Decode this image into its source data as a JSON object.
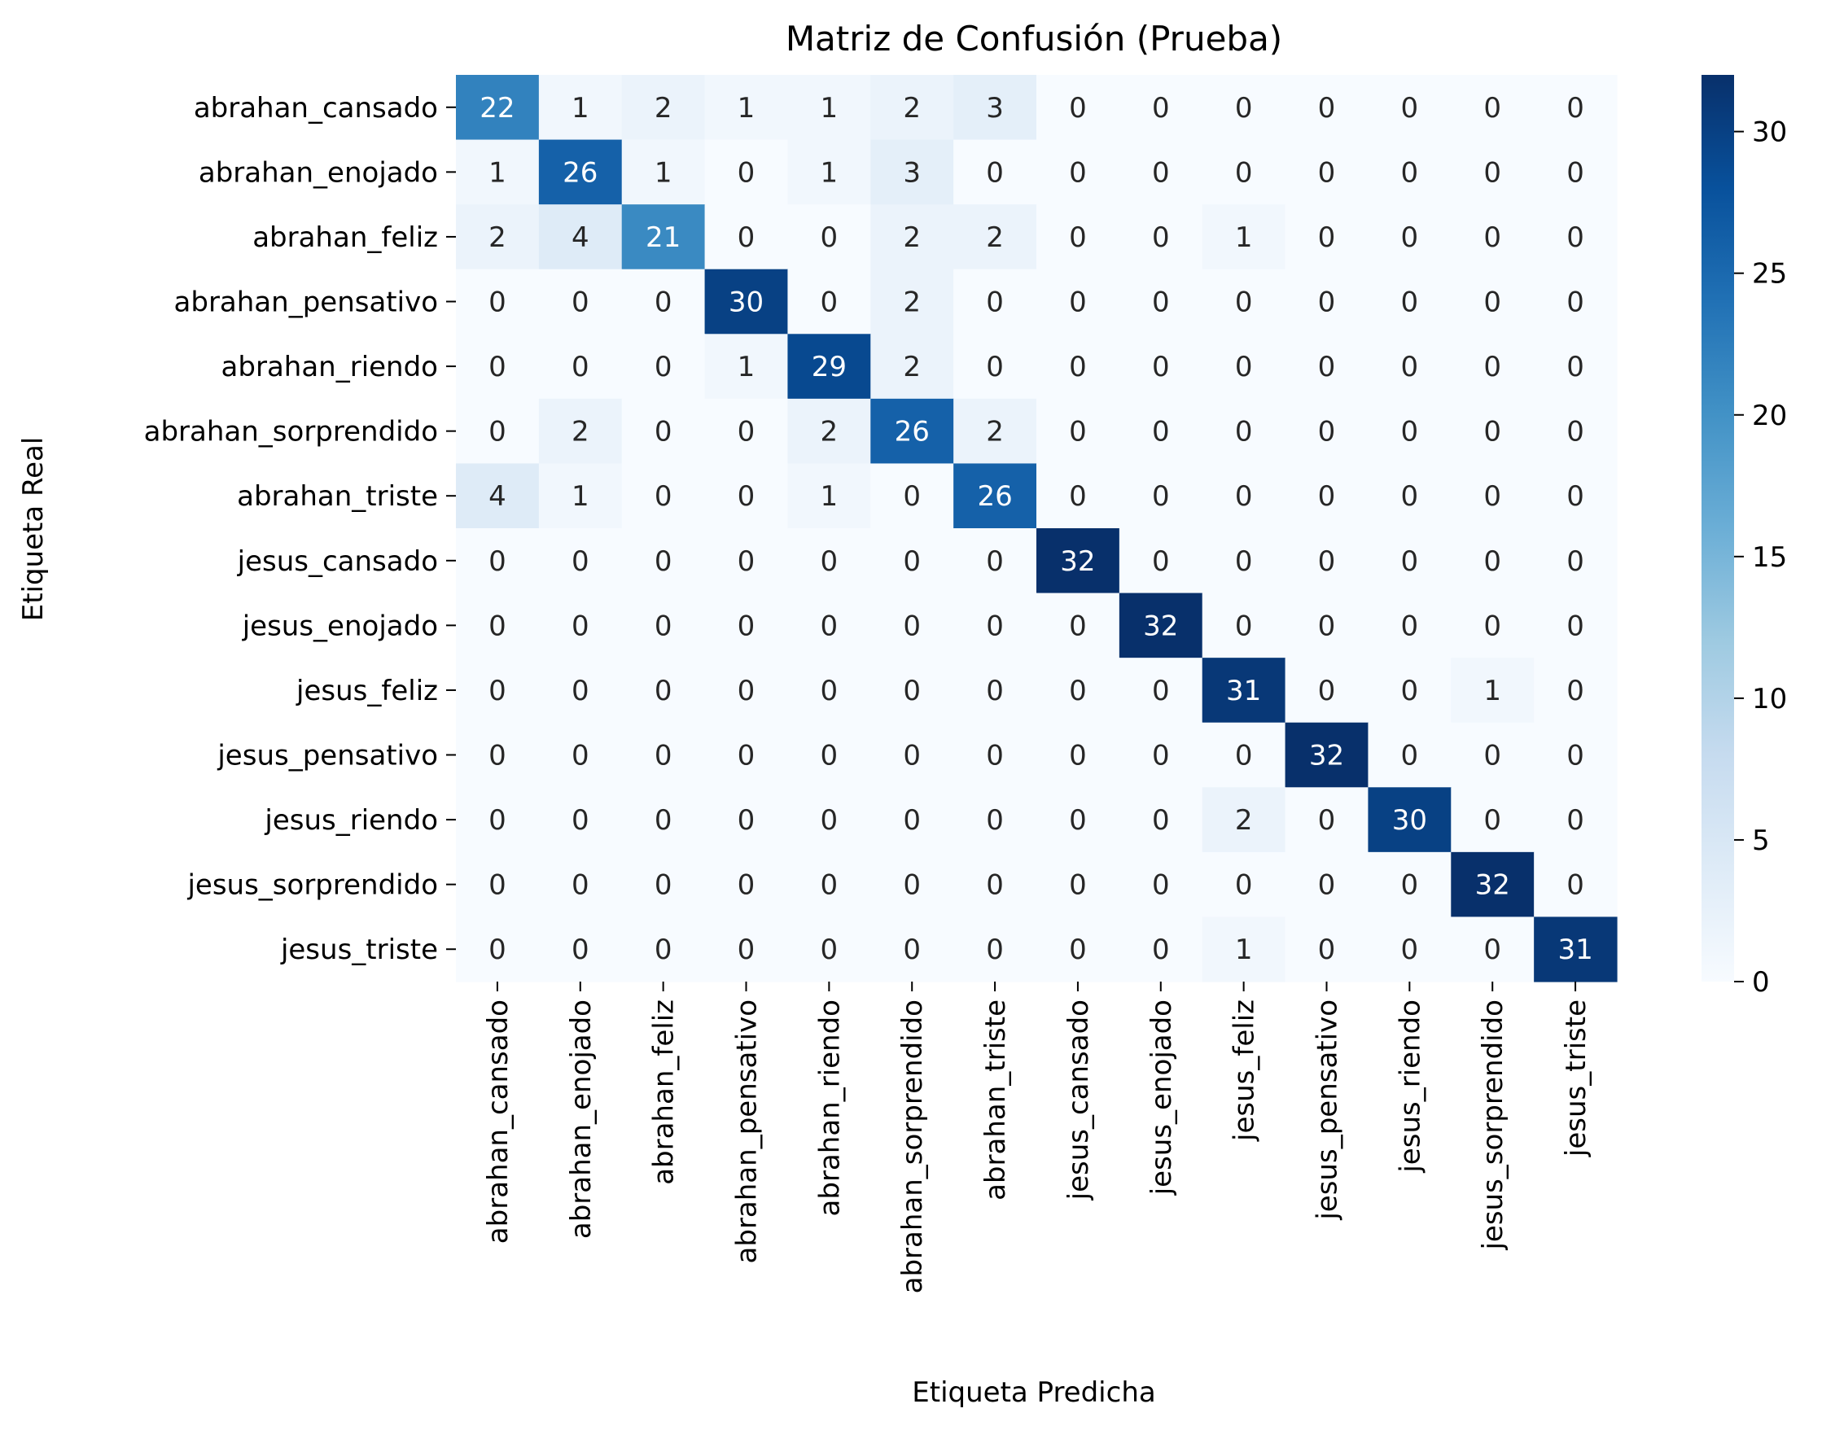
{
  "chart_data": {
    "type": "heatmap",
    "title": "Matriz de Confusión (Prueba)",
    "xlabel": "Etiqueta Predicha",
    "ylabel": "Etiqueta Real",
    "rows": [
      "abrahan_cansado",
      "abrahan_enojado",
      "abrahan_feliz",
      "abrahan_pensativo",
      "abrahan_riendo",
      "abrahan_sorprendido",
      "abrahan_triste",
      "jesus_cansado",
      "jesus_enojado",
      "jesus_feliz",
      "jesus_pensativo",
      "jesus_riendo",
      "jesus_sorprendido",
      "jesus_triste"
    ],
    "columns": [
      "abrahan_cansado",
      "abrahan_enojado",
      "abrahan_feliz",
      "abrahan_pensativo",
      "abrahan_riendo",
      "abrahan_sorprendido",
      "abrahan_triste",
      "jesus_cansado",
      "jesus_enojado",
      "jesus_feliz",
      "jesus_pensativo",
      "jesus_riendo",
      "jesus_sorprendido",
      "jesus_triste"
    ],
    "values": [
      [
        22,
        1,
        2,
        1,
        1,
        2,
        3,
        0,
        0,
        0,
        0,
        0,
        0,
        0
      ],
      [
        1,
        26,
        1,
        0,
        1,
        3,
        0,
        0,
        0,
        0,
        0,
        0,
        0,
        0
      ],
      [
        2,
        4,
        21,
        0,
        0,
        2,
        2,
        0,
        0,
        1,
        0,
        0,
        0,
        0
      ],
      [
        0,
        0,
        0,
        30,
        0,
        2,
        0,
        0,
        0,
        0,
        0,
        0,
        0,
        0
      ],
      [
        0,
        0,
        0,
        1,
        29,
        2,
        0,
        0,
        0,
        0,
        0,
        0,
        0,
        0
      ],
      [
        0,
        2,
        0,
        0,
        2,
        26,
        2,
        0,
        0,
        0,
        0,
        0,
        0,
        0
      ],
      [
        4,
        1,
        0,
        0,
        1,
        0,
        26,
        0,
        0,
        0,
        0,
        0,
        0,
        0
      ],
      [
        0,
        0,
        0,
        0,
        0,
        0,
        0,
        32,
        0,
        0,
        0,
        0,
        0,
        0
      ],
      [
        0,
        0,
        0,
        0,
        0,
        0,
        0,
        0,
        32,
        0,
        0,
        0,
        0,
        0
      ],
      [
        0,
        0,
        0,
        0,
        0,
        0,
        0,
        0,
        0,
        31,
        0,
        0,
        1,
        0
      ],
      [
        0,
        0,
        0,
        0,
        0,
        0,
        0,
        0,
        0,
        0,
        32,
        0,
        0,
        0
      ],
      [
        0,
        0,
        0,
        0,
        0,
        0,
        0,
        0,
        0,
        2,
        0,
        30,
        0,
        0
      ],
      [
        0,
        0,
        0,
        0,
        0,
        0,
        0,
        0,
        0,
        0,
        0,
        0,
        32,
        0
      ],
      [
        0,
        0,
        0,
        0,
        0,
        0,
        0,
        0,
        0,
        1,
        0,
        0,
        0,
        31
      ]
    ],
    "colorbar": {
      "min": 0,
      "max": 32,
      "ticks": [
        0,
        5,
        10,
        15,
        20,
        25,
        30
      ],
      "colormap": "Blues"
    }
  }
}
